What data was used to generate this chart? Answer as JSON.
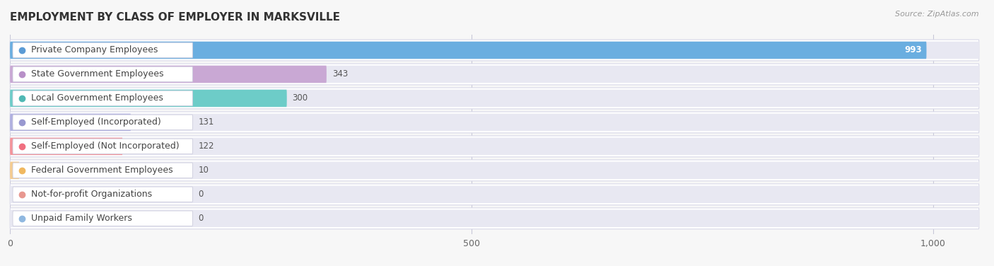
{
  "title": "EMPLOYMENT BY CLASS OF EMPLOYER IN MARKSVILLE",
  "source": "Source: ZipAtlas.com",
  "categories": [
    "Private Company Employees",
    "State Government Employees",
    "Local Government Employees",
    "Self-Employed (Incorporated)",
    "Self-Employed (Not Incorporated)",
    "Federal Government Employees",
    "Not-for-profit Organizations",
    "Unpaid Family Workers"
  ],
  "values": [
    993,
    343,
    300,
    131,
    122,
    10,
    0,
    0
  ],
  "bar_colors": [
    "#6aaee0",
    "#c9a8d4",
    "#6dccc8",
    "#b0b0e0",
    "#f4949a",
    "#f5cc90",
    "#f0b0a8",
    "#a8c8e8"
  ],
  "dot_colors": [
    "#5b9bd5",
    "#b890c8",
    "#50b8b4",
    "#9898d0",
    "#f07080",
    "#f0b860",
    "#e89890",
    "#90b8e0"
  ],
  "row_bg_color": "#f0f0f5",
  "row_inner_bg_color": "#e8e8f0",
  "background_color": "#f7f7f7",
  "label_pill_color": "white",
  "xlim_max": 1050,
  "xticks": [
    0,
    500,
    1000
  ],
  "xticklabels": [
    "0",
    "500",
    "1,000"
  ],
  "title_fontsize": 11,
  "label_fontsize": 9,
  "value_fontsize": 8.5,
  "source_fontsize": 8
}
